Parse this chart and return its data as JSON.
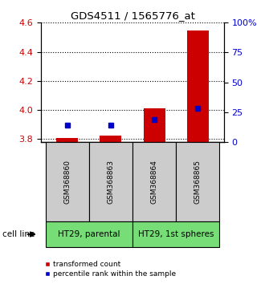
{
  "title": "GDS4511 / 1565776_at",
  "samples": [
    "GSM368860",
    "GSM368863",
    "GSM368864",
    "GSM368865"
  ],
  "red_values": [
    3.806,
    3.825,
    4.01,
    4.545
  ],
  "blue_values_pct": [
    14,
    14,
    19,
    28
  ],
  "ylim_left": [
    3.78,
    4.6
  ],
  "ylim_right": [
    0,
    100
  ],
  "left_ticks": [
    3.8,
    4.0,
    4.2,
    4.4,
    4.6
  ],
  "right_ticks": [
    0,
    25,
    50,
    75,
    100
  ],
  "right_tick_labels": [
    "0",
    "25",
    "50",
    "75",
    "100%"
  ],
  "left_color": "#cc0000",
  "right_color": "#0000cc",
  "sample_bg_color": "#cccccc",
  "group_bg_color": "#77dd77",
  "cell_line_label": "cell line",
  "legend_red": "transformed count",
  "legend_blue": "percentile rank within the sample",
  "red_base": 3.78,
  "groups_info": [
    {
      "label": "HT29, parental",
      "xmin": -0.5,
      "xmax": 1.5
    },
    {
      "label": "HT29, 1st spheres",
      "xmin": 1.5,
      "xmax": 3.5
    }
  ]
}
